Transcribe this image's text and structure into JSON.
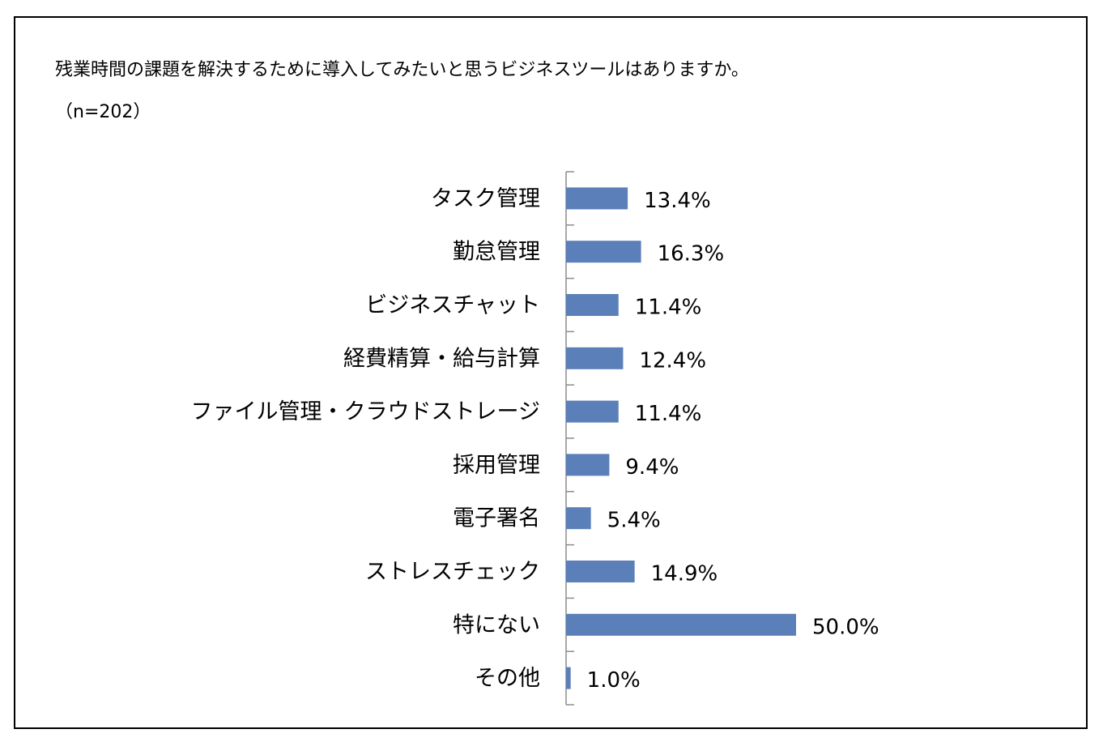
{
  "title": "残業時間の課題を解決するために導入してみたいと思うビジネスツールはありますか。",
  "subtitle": "（n=202）",
  "colors": {
    "bar": "#5b7fb8",
    "axis": "#8c8c8c",
    "text": "#000000"
  },
  "chart_data": {
    "type": "bar",
    "orientation": "horizontal",
    "title": "残業時間の課題を解決するために導入してみたいと思うビジネスツールはありますか。",
    "subtitle": "（n=202）",
    "categories": [
      "タスク管理",
      "勤怠管理",
      "ビジネスチャット",
      "経費精算・給与計算",
      "ファイル管理・クラウドストレージ",
      "採用管理",
      "電子署名",
      "ストレスチェック",
      "特にない",
      "その他"
    ],
    "values": [
      13.4,
      16.3,
      11.4,
      12.4,
      11.4,
      9.4,
      5.4,
      14.9,
      50.0,
      1.0
    ],
    "value_labels": [
      "13.4%",
      "16.3%",
      "11.4%",
      "12.4%",
      "11.4%",
      "9.4%",
      "5.4%",
      "14.9%",
      "50.0%",
      "1.0%"
    ],
    "unit": "%",
    "xlim": [
      0,
      50
    ],
    "grid": false,
    "legend": "none"
  }
}
